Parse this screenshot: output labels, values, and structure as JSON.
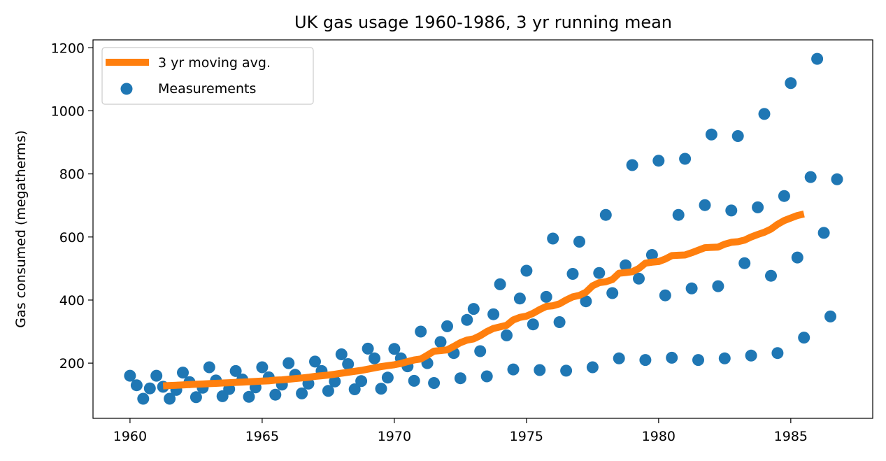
{
  "chart_data": {
    "type": "line+scatter",
    "title": "UK gas usage 1960-1986, 3 yr running mean",
    "xlabel": "",
    "ylabel": "Gas consumed (megatherms)",
    "xlim": [
      1958.6,
      1988.1
    ],
    "ylim": [
      25,
      1225
    ],
    "xticks": [
      1960,
      1965,
      1970,
      1975,
      1980,
      1985
    ],
    "yticks": [
      200,
      400,
      600,
      800,
      1000,
      1200
    ],
    "grid": false,
    "legend_position": "upper-left",
    "colors": {
      "line": "#ff7f0e",
      "points": "#1f77b4"
    },
    "series": [
      {
        "name": "3 yr moving avg.",
        "kind": "line",
        "points": [
          [
            1961.25,
            128
          ],
          [
            1961.5,
            129
          ],
          [
            1961.75,
            130
          ],
          [
            1962.0,
            131
          ],
          [
            1962.25,
            132
          ],
          [
            1962.5,
            133
          ],
          [
            1962.75,
            134
          ],
          [
            1963.0,
            135
          ],
          [
            1963.25,
            136
          ],
          [
            1963.5,
            137
          ],
          [
            1963.75,
            138
          ],
          [
            1964.0,
            139
          ],
          [
            1964.25,
            140
          ],
          [
            1964.5,
            141
          ],
          [
            1964.75,
            142
          ],
          [
            1965.0,
            143
          ],
          [
            1965.25,
            144
          ],
          [
            1965.5,
            146
          ],
          [
            1965.75,
            147
          ],
          [
            1966.0,
            149
          ],
          [
            1966.25,
            151
          ],
          [
            1966.5,
            153
          ],
          [
            1966.75,
            155
          ],
          [
            1967.0,
            158
          ],
          [
            1967.25,
            160
          ],
          [
            1967.5,
            162
          ],
          [
            1967.75,
            165
          ],
          [
            1968.0,
            168
          ],
          [
            1968.25,
            171
          ],
          [
            1968.5,
            174
          ],
          [
            1968.75,
            177
          ],
          [
            1969.0,
            181
          ],
          [
            1969.25,
            185
          ],
          [
            1969.5,
            189
          ],
          [
            1969.75,
            192
          ],
          [
            1970.0,
            195
          ],
          [
            1970.25,
            199
          ],
          [
            1970.5,
            205
          ],
          [
            1970.75,
            210
          ],
          [
            1971.0,
            213
          ],
          [
            1971.25,
            225
          ],
          [
            1971.5,
            238
          ],
          [
            1971.75,
            240
          ],
          [
            1972.0,
            242
          ],
          [
            1972.25,
            253
          ],
          [
            1972.5,
            265
          ],
          [
            1972.75,
            273
          ],
          [
            1973.0,
            277
          ],
          [
            1973.25,
            287
          ],
          [
            1973.5,
            300
          ],
          [
            1973.75,
            310
          ],
          [
            1974.0,
            315
          ],
          [
            1974.25,
            320
          ],
          [
            1974.5,
            337
          ],
          [
            1974.75,
            345
          ],
          [
            1975.0,
            349
          ],
          [
            1975.25,
            358
          ],
          [
            1975.5,
            370
          ],
          [
            1975.75,
            380
          ],
          [
            1976.0,
            382
          ],
          [
            1976.25,
            388
          ],
          [
            1976.5,
            400
          ],
          [
            1976.75,
            410
          ],
          [
            1977.0,
            415
          ],
          [
            1977.25,
            425
          ],
          [
            1977.5,
            445
          ],
          [
            1977.75,
            455
          ],
          [
            1978.0,
            458
          ],
          [
            1978.25,
            465
          ],
          [
            1978.5,
            485
          ],
          [
            1978.75,
            487
          ],
          [
            1979.0,
            490
          ],
          [
            1979.25,
            500
          ],
          [
            1979.5,
            517
          ],
          [
            1979.75,
            520
          ],
          [
            1980.0,
            522
          ],
          [
            1980.25,
            530
          ],
          [
            1980.5,
            541
          ],
          [
            1980.75,
            542
          ],
          [
            1981.0,
            543
          ],
          [
            1981.25,
            550
          ],
          [
            1981.5,
            558
          ],
          [
            1981.75,
            566
          ],
          [
            1982.0,
            567
          ],
          [
            1982.25,
            568
          ],
          [
            1982.5,
            577
          ],
          [
            1982.75,
            583
          ],
          [
            1983.0,
            585
          ],
          [
            1983.25,
            590
          ],
          [
            1983.5,
            600
          ],
          [
            1983.75,
            608
          ],
          [
            1984.0,
            615
          ],
          [
            1984.25,
            625
          ],
          [
            1984.5,
            640
          ],
          [
            1984.75,
            652
          ],
          [
            1985.0,
            660
          ],
          [
            1985.25,
            668
          ],
          [
            1985.5,
            673
          ]
        ]
      },
      {
        "name": "Measurements",
        "kind": "scatter",
        "points": [
          [
            1960.0,
            160
          ],
          [
            1960.25,
            130
          ],
          [
            1960.5,
            87
          ],
          [
            1960.75,
            120
          ],
          [
            1961.0,
            160
          ],
          [
            1961.25,
            125
          ],
          [
            1961.5,
            87
          ],
          [
            1961.75,
            115
          ],
          [
            1962.0,
            170
          ],
          [
            1962.25,
            140
          ],
          [
            1962.5,
            92
          ],
          [
            1962.75,
            122
          ],
          [
            1963.0,
            187
          ],
          [
            1963.25,
            145
          ],
          [
            1963.5,
            95
          ],
          [
            1963.75,
            118
          ],
          [
            1964.0,
            175
          ],
          [
            1964.25,
            148
          ],
          [
            1964.5,
            93
          ],
          [
            1964.75,
            123
          ],
          [
            1965.0,
            187
          ],
          [
            1965.25,
            155
          ],
          [
            1965.5,
            100
          ],
          [
            1965.75,
            132
          ],
          [
            1966.0,
            200
          ],
          [
            1966.25,
            163
          ],
          [
            1966.5,
            104
          ],
          [
            1966.75,
            135
          ],
          [
            1967.0,
            205
          ],
          [
            1967.25,
            175
          ],
          [
            1967.5,
            112
          ],
          [
            1967.75,
            142
          ],
          [
            1968.0,
            228
          ],
          [
            1968.25,
            197
          ],
          [
            1968.5,
            117
          ],
          [
            1968.75,
            143
          ],
          [
            1969.0,
            246
          ],
          [
            1969.25,
            215
          ],
          [
            1969.5,
            119
          ],
          [
            1969.75,
            154
          ],
          [
            1970.0,
            245
          ],
          [
            1970.25,
            215
          ],
          [
            1970.5,
            190
          ],
          [
            1970.75,
            144
          ],
          [
            1971.0,
            300
          ],
          [
            1971.25,
            200
          ],
          [
            1971.5,
            137
          ],
          [
            1971.75,
            267
          ],
          [
            1972.0,
            317
          ],
          [
            1972.25,
            232
          ],
          [
            1972.5,
            152
          ],
          [
            1972.75,
            337
          ],
          [
            1973.0,
            372
          ],
          [
            1973.25,
            238
          ],
          [
            1973.5,
            158
          ],
          [
            1973.75,
            355
          ],
          [
            1974.0,
            450
          ],
          [
            1974.25,
            288
          ],
          [
            1974.5,
            180
          ],
          [
            1974.75,
            405
          ],
          [
            1975.0,
            493
          ],
          [
            1975.25,
            323
          ],
          [
            1975.5,
            178
          ],
          [
            1975.75,
            410
          ],
          [
            1976.0,
            595
          ],
          [
            1976.25,
            330
          ],
          [
            1976.5,
            176
          ],
          [
            1976.75,
            483
          ],
          [
            1977.0,
            585
          ],
          [
            1977.25,
            396
          ],
          [
            1977.5,
            187
          ],
          [
            1977.75,
            486
          ],
          [
            1978.0,
            670
          ],
          [
            1978.25,
            422
          ],
          [
            1978.5,
            215
          ],
          [
            1978.75,
            510
          ],
          [
            1979.0,
            828
          ],
          [
            1979.25,
            468
          ],
          [
            1979.5,
            210
          ],
          [
            1979.75,
            543
          ],
          [
            1980.0,
            842
          ],
          [
            1980.25,
            415
          ],
          [
            1980.5,
            217
          ],
          [
            1980.75,
            670
          ],
          [
            1981.0,
            848
          ],
          [
            1981.25,
            437
          ],
          [
            1981.5,
            210
          ],
          [
            1981.75,
            701
          ],
          [
            1982.0,
            925
          ],
          [
            1982.25,
            444
          ],
          [
            1982.5,
            215
          ],
          [
            1982.75,
            684
          ],
          [
            1983.0,
            920
          ],
          [
            1983.25,
            517
          ],
          [
            1983.5,
            224
          ],
          [
            1983.75,
            694
          ],
          [
            1984.0,
            990
          ],
          [
            1984.25,
            477
          ],
          [
            1984.5,
            232
          ],
          [
            1984.75,
            730
          ],
          [
            1985.0,
            1088
          ],
          [
            1985.25,
            535
          ],
          [
            1985.5,
            281
          ],
          [
            1985.75,
            790
          ],
          [
            1986.0,
            1165
          ],
          [
            1986.25,
            613
          ],
          [
            1986.5,
            348
          ],
          [
            1986.75,
            783
          ]
        ]
      }
    ]
  }
}
